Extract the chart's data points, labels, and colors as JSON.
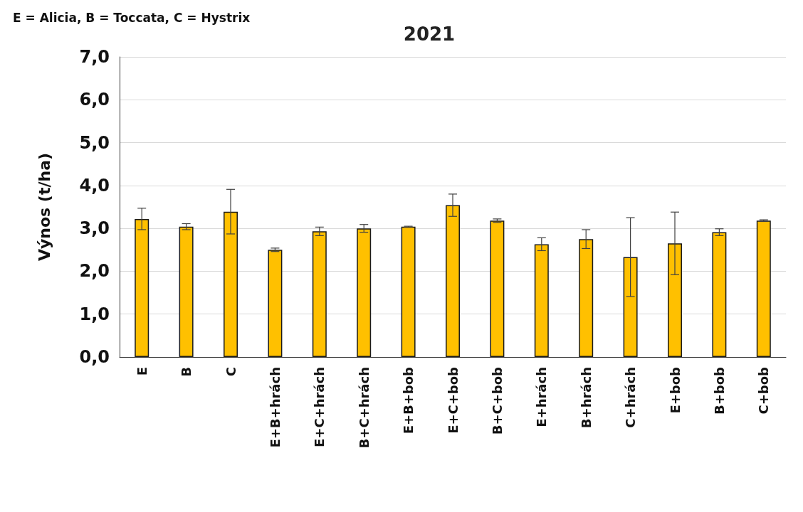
{
  "chart_data": {
    "type": "bar",
    "title": "2021",
    "ylabel": "Výnos (t/ha)",
    "annotations": [
      "E = Alicia, B = Toccata, C = Hystrix"
    ],
    "categories": [
      "E",
      "B",
      "C",
      "E+B+hrách",
      "E+C+hrách",
      "B+C+hrách",
      "E+B+bob",
      "E+C+bob",
      "B+C+bob",
      "E+hrách",
      "B+hrách",
      "C+hrách",
      "E+bob",
      "B+bob",
      "C+bob"
    ],
    "values": [
      3.22,
      3.04,
      3.39,
      2.5,
      2.93,
      3.0,
      3.04,
      3.54,
      3.18,
      2.63,
      2.75,
      2.33,
      2.65,
      2.91,
      3.18
    ],
    "errors": [
      0.25,
      0.07,
      0.52,
      0.04,
      0.1,
      0.09,
      0.01,
      0.26,
      0.04,
      0.15,
      0.22,
      0.92,
      0.73,
      0.08,
      0.02
    ],
    "color": "#ffc000",
    "ylim": [
      0,
      7
    ],
    "yticks": [
      {
        "value": 0,
        "label": "0,0"
      },
      {
        "value": 1,
        "label": "1,0"
      },
      {
        "value": 2,
        "label": "2,0"
      },
      {
        "value": 3,
        "label": "3,0"
      },
      {
        "value": 4,
        "label": "4,0"
      },
      {
        "value": 5,
        "label": "5,0"
      },
      {
        "value": 6,
        "label": "6,0"
      },
      {
        "value": 7,
        "label": "7,0"
      }
    ],
    "grid": "y"
  }
}
